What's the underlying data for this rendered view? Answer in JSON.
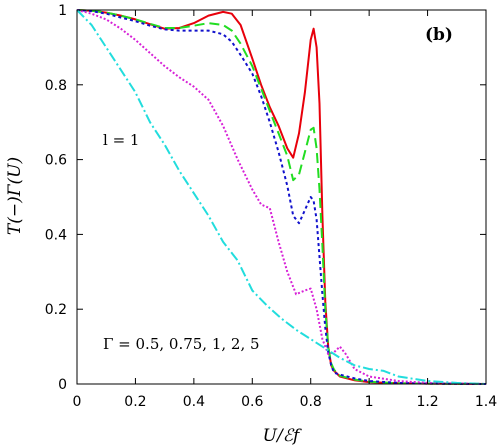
{
  "chart_data": {
    "type": "line",
    "panel_label": "(b)",
    "xlabel": "U/ℰf",
    "ylabel": "T(−)Γ(U)",
    "xlim": [
      0,
      1.4
    ],
    "ylim": [
      0,
      1
    ],
    "xticks": [
      "0",
      "0.2",
      "0.4",
      "0.6",
      "0.8",
      "1",
      "1.2",
      "1.4"
    ],
    "yticks": [
      "0",
      "0.2",
      "0.4",
      "0.6",
      "0.8",
      "1"
    ],
    "annotations": {
      "l_label": "l = 1",
      "gamma_label": "Γ = 0.5, 0.75, 1, 2, 5"
    },
    "grid": false,
    "series": [
      {
        "color": "#e8000b",
        "dash": "solid",
        "x": [
          0,
          0.05,
          0.1,
          0.15,
          0.2,
          0.25,
          0.3,
          0.35,
          0.4,
          0.45,
          0.5,
          0.53,
          0.56,
          0.6,
          0.63,
          0.66,
          0.69,
          0.72,
          0.74,
          0.76,
          0.78,
          0.8,
          0.81,
          0.82,
          0.83,
          0.84,
          0.85,
          0.86,
          0.87,
          0.88,
          0.9,
          0.95,
          1.0,
          1.1,
          1.2,
          1.4
        ],
        "y": [
          1.0,
          0.998,
          0.993,
          0.985,
          0.975,
          0.962,
          0.95,
          0.952,
          0.965,
          0.985,
          0.995,
          0.99,
          0.96,
          0.87,
          0.8,
          0.74,
          0.69,
          0.63,
          0.605,
          0.67,
          0.78,
          0.92,
          0.95,
          0.9,
          0.75,
          0.45,
          0.22,
          0.1,
          0.05,
          0.035,
          0.02,
          0.01,
          0.005,
          0.002,
          0.001,
          0
        ]
      },
      {
        "color": "#22dd22",
        "dash": "10,5",
        "x": [
          0,
          0.05,
          0.1,
          0.15,
          0.2,
          0.25,
          0.3,
          0.35,
          0.4,
          0.45,
          0.5,
          0.53,
          0.56,
          0.6,
          0.63,
          0.66,
          0.69,
          0.72,
          0.74,
          0.76,
          0.78,
          0.8,
          0.81,
          0.82,
          0.83,
          0.84,
          0.85,
          0.86,
          0.87,
          0.88,
          0.9,
          0.95,
          1.0,
          1.1,
          1.2,
          1.4
        ],
        "y": [
          1.0,
          0.998,
          0.993,
          0.985,
          0.975,
          0.963,
          0.952,
          0.952,
          0.958,
          0.965,
          0.96,
          0.945,
          0.91,
          0.85,
          0.79,
          0.73,
          0.67,
          0.61,
          0.545,
          0.56,
          0.62,
          0.68,
          0.685,
          0.63,
          0.52,
          0.37,
          0.2,
          0.1,
          0.055,
          0.038,
          0.022,
          0.012,
          0.006,
          0.002,
          0.001,
          0
        ]
      },
      {
        "color": "#1111cc",
        "dash": "3,3",
        "x": [
          0,
          0.05,
          0.1,
          0.15,
          0.2,
          0.25,
          0.3,
          0.35,
          0.4,
          0.45,
          0.5,
          0.53,
          0.56,
          0.6,
          0.63,
          0.66,
          0.69,
          0.72,
          0.74,
          0.76,
          0.78,
          0.8,
          0.81,
          0.82,
          0.83,
          0.84,
          0.85,
          0.86,
          0.87,
          0.88,
          0.9,
          0.95,
          1.0,
          1.1,
          1.2,
          1.4
        ],
        "y": [
          1.0,
          0.997,
          0.99,
          0.98,
          0.97,
          0.958,
          0.948,
          0.945,
          0.945,
          0.945,
          0.935,
          0.915,
          0.88,
          0.83,
          0.77,
          0.7,
          0.62,
          0.53,
          0.45,
          0.43,
          0.465,
          0.5,
          0.49,
          0.44,
          0.34,
          0.24,
          0.15,
          0.085,
          0.05,
          0.03,
          0.025,
          0.015,
          0.008,
          0.003,
          0.001,
          0
        ]
      },
      {
        "color": "#d722d7",
        "dash": "2,2",
        "x": [
          0,
          0.05,
          0.1,
          0.15,
          0.2,
          0.25,
          0.3,
          0.35,
          0.4,
          0.45,
          0.5,
          0.55,
          0.6,
          0.63,
          0.66,
          0.69,
          0.72,
          0.75,
          0.78,
          0.8,
          0.82,
          0.84,
          0.86,
          0.88,
          0.9,
          0.92,
          0.95,
          1.0,
          1.1,
          1.2,
          1.4
        ],
        "y": [
          1.0,
          0.99,
          0.975,
          0.95,
          0.92,
          0.885,
          0.85,
          0.82,
          0.795,
          0.76,
          0.69,
          0.6,
          0.52,
          0.48,
          0.47,
          0.38,
          0.3,
          0.24,
          0.25,
          0.255,
          0.2,
          0.12,
          0.08,
          0.085,
          0.1,
          0.08,
          0.04,
          0.02,
          0.008,
          0.003,
          0
        ]
      },
      {
        "color": "#22dddd",
        "dash": "10,3,2,3",
        "x": [
          0,
          0.05,
          0.1,
          0.15,
          0.2,
          0.25,
          0.3,
          0.35,
          0.4,
          0.45,
          0.5,
          0.55,
          0.6,
          0.65,
          0.7,
          0.75,
          0.8,
          0.85,
          0.9,
          0.95,
          1.0,
          1.05,
          1.1,
          1.2,
          1.3,
          1.4
        ],
        "y": [
          1.0,
          0.96,
          0.9,
          0.84,
          0.78,
          0.7,
          0.64,
          0.57,
          0.51,
          0.45,
          0.38,
          0.33,
          0.25,
          0.21,
          0.175,
          0.145,
          0.12,
          0.095,
          0.07,
          0.05,
          0.04,
          0.035,
          0.02,
          0.008,
          0.003,
          0
        ]
      }
    ]
  }
}
